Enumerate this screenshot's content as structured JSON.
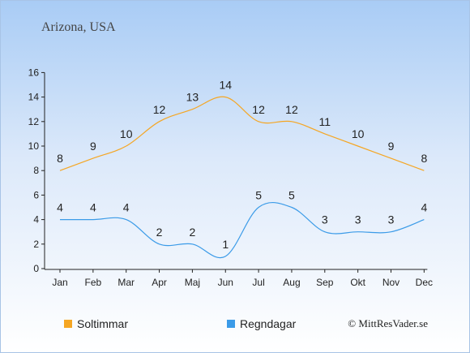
{
  "chart_data": {
    "type": "line",
    "title": "Arizona, USA",
    "categories": [
      "Jan",
      "Feb",
      "Mar",
      "Apr",
      "Maj",
      "Jun",
      "Jul",
      "Aug",
      "Sep",
      "Okt",
      "Nov",
      "Dec"
    ],
    "ylim": [
      0,
      16
    ],
    "yticks": [
      0,
      2,
      4,
      6,
      8,
      10,
      12,
      14,
      16
    ],
    "series": [
      {
        "name": "Soltimmar",
        "color": "#f5a623",
        "values": [
          8,
          9,
          10,
          12,
          13,
          14,
          12,
          12,
          11,
          10,
          9,
          8
        ]
      },
      {
        "name": "Regndagar",
        "color": "#3b9be8",
        "values": [
          4,
          4,
          4,
          2,
          2,
          1,
          5,
          5,
          3,
          3,
          3,
          4
        ]
      }
    ],
    "legend_position": "bottom-left",
    "grid": false,
    "copyright": "© MittResVader.se"
  }
}
